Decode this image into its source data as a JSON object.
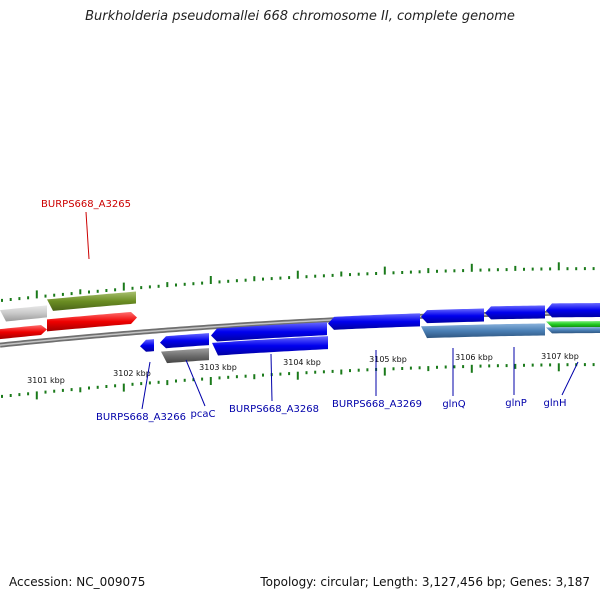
{
  "title": "Burkholderia pseudomallei 668 chromosome II, complete genome",
  "footer": {
    "accession": "Accession: NC_009075",
    "summary": "Topology: circular; Length: 3,127,456 bp; Genes: 3,187"
  },
  "colors": {
    "backbone": "#8a8a8a",
    "tick": "#1a7a1a",
    "gene_blue": "#0000ee",
    "gene_red": "#ee0000",
    "gene_olive": "#6b8e23",
    "gene_gray": "#6e6e6e",
    "gene_lightgray": "#c8c8c8",
    "gene_steelblue": "#4a7fb5",
    "gene_green": "#22cc22",
    "label_blue": "#0000aa",
    "label_red": "#cc0000"
  },
  "kbp_labels": [
    "3101 kbp",
    "3102 kbp",
    "3103 kbp",
    "3104 kbp",
    "3105 kbp",
    "3106 kbp",
    "3107 kbp"
  ],
  "gene_labels": [
    {
      "text": "BURPS668_A3265",
      "color": "red"
    },
    {
      "text": "BURPS668_A3266",
      "color": "blue"
    },
    {
      "text": "pcaC",
      "color": "blue"
    },
    {
      "text": "BURPS668_A3268",
      "color": "blue"
    },
    {
      "text": "BURPS668_A3269",
      "color": "blue"
    },
    {
      "text": "glnQ",
      "color": "blue"
    },
    {
      "text": "glnP",
      "color": "blue"
    },
    {
      "text": "glnH",
      "color": "blue"
    }
  ]
}
